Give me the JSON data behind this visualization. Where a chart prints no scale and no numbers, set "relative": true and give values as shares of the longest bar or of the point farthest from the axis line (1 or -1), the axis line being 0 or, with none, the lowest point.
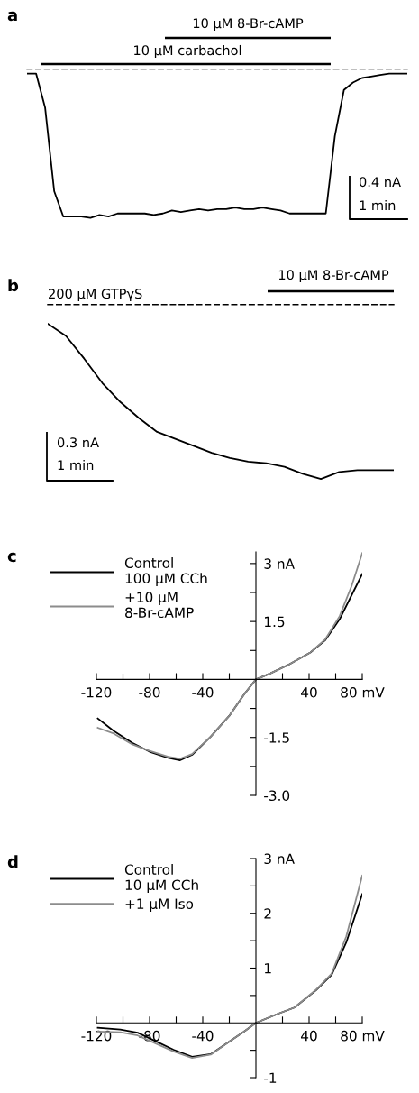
{
  "chart_data": [
    {
      "type": "line",
      "title": "a",
      "relative": true,
      "tick_labels": false,
      "grid": false,
      "legend": false,
      "line_style": "solid",
      "marker": "none",
      "categories": [
        null,
        null,
        null,
        null,
        null,
        null,
        null,
        null,
        null,
        null,
        null,
        null,
        null,
        null,
        null,
        null,
        null,
        null,
        null,
        null,
        null,
        null,
        null,
        null,
        null,
        null,
        null,
        null,
        null,
        null,
        null,
        null,
        null,
        null,
        null,
        null,
        null,
        null,
        null,
        null,
        null,
        null,
        null
      ],
      "series": [
        {
          "color": "#000000",
          "values": [
            -0.03,
            -0.03,
            -0.26,
            -0.82,
            -0.99,
            -0.99,
            -0.99,
            -1,
            -0.98,
            -0.99,
            -0.97,
            -0.97,
            -0.97,
            -0.97,
            -0.98,
            -0.97,
            -0.95,
            -0.96,
            -0.95,
            -0.94,
            -0.95,
            -0.94,
            -0.94,
            -0.93,
            -0.94,
            -0.94,
            -0.93,
            -0.94,
            -0.95,
            -0.97,
            -0.97,
            -0.97,
            -0.97,
            -0.97,
            -0.45,
            -0.14,
            -0.09,
            -0.06,
            -0.05,
            -0.04,
            -0.03,
            -0.03,
            -0.03
          ]
        }
      ],
      "annotations": [
        "10 µM 8-Br-cAMP",
        "10 µM carbachol",
        "0.4 nA",
        "1 min"
      ]
    },
    {
      "type": "line",
      "title": "b",
      "relative": true,
      "tick_labels": false,
      "grid": false,
      "legend": false,
      "line_style": "solid",
      "marker": "none",
      "categories": [
        null,
        null,
        null,
        null,
        null,
        null,
        null,
        null,
        null,
        null,
        null,
        null,
        null,
        null,
        null,
        null,
        null,
        null,
        null,
        null
      ],
      "series": [
        {
          "color": "#000000",
          "values": [
            -0.11,
            -0.18,
            -0.31,
            -0.45,
            -0.56,
            -0.65,
            -0.73,
            -0.77,
            -0.81,
            -0.85,
            -0.88,
            -0.9,
            -0.91,
            -0.93,
            -0.97,
            -1,
            -0.96,
            -0.95,
            -0.95,
            -0.95
          ]
        }
      ],
      "annotations": [
        "200 µM GTPγS",
        "10 µM 8-Br-cAMP",
        "0.3 nA",
        "1 min"
      ]
    },
    {
      "type": "line",
      "title": "c",
      "grid": false,
      "legend": "top left",
      "line_style": "solid",
      "marker": "none",
      "xlim": [
        -120,
        80
      ],
      "ylim": [
        -3.0,
        3.3
      ],
      "xticks": [
        -120,
        {
          "value": -100,
          "label": null
        },
        -80,
        {
          "value": -60,
          "label": null
        },
        -40,
        {
          "value": -20,
          "label": null
        },
        {
          "value": 20,
          "label": null
        },
        40,
        {
          "value": 60,
          "label": null
        },
        {
          "value": 80,
          "label": "80 mV"
        }
      ],
      "yticks": [
        {
          "value": 3,
          "label": "3 nA"
        },
        {
          "value": 2.25,
          "label": null
        },
        1.5,
        {
          "value": 0.75,
          "label": null
        },
        {
          "value": -0.75,
          "label": null
        },
        -1.5,
        {
          "value": -2.25,
          "label": null
        },
        {
          "value": -3,
          "label": "-3.0"
        }
      ],
      "x": [
        -119,
        -107,
        -93,
        -80,
        -66,
        -57,
        -48,
        -34,
        -20,
        -9,
        0,
        11,
        25,
        41,
        52,
        63,
        72,
        80
      ],
      "series": [
        {
          "name": "Control\n100 µM CCh",
          "color": "#000000",
          "values": [
            -1.01,
            -1.33,
            -1.64,
            -1.87,
            -2.03,
            -2.09,
            -1.95,
            -1.48,
            -0.94,
            -0.39,
            0,
            0.16,
            0.39,
            0.7,
            1.01,
            1.56,
            2.18,
            2.73
          ]
        },
        {
          "name": "+10 µM\n8-Br-cAMP",
          "color": "#8c8c8c",
          "values": [
            -1.25,
            -1.4,
            -1.68,
            -1.85,
            -2.0,
            -2.05,
            -1.93,
            -1.48,
            -0.94,
            -0.39,
            0,
            0.16,
            0.39,
            0.7,
            1.03,
            1.64,
            2.42,
            3.27
          ]
        }
      ]
    },
    {
      "type": "line",
      "title": "d",
      "grid": false,
      "legend": "top left",
      "line_style": "solid",
      "marker": "none",
      "xlim": [
        -120,
        80
      ],
      "ylim": [
        -1,
        3
      ],
      "xticks": [
        -120,
        {
          "value": -100,
          "label": null
        },
        -80,
        {
          "value": -60,
          "label": null
        },
        -40,
        {
          "value": -20,
          "label": null
        },
        {
          "value": 20,
          "label": null
        },
        40,
        {
          "value": 60,
          "label": null
        },
        {
          "value": 80,
          "label": "80 mV"
        }
      ],
      "yticks": [
        {
          "value": 3,
          "label": "3 nA"
        },
        {
          "value": 2.5,
          "label": null
        },
        2,
        {
          "value": 1.5,
          "label": null
        },
        1,
        {
          "value": 0.5,
          "label": null
        },
        {
          "value": -0.5,
          "label": null
        },
        -1
      ],
      "x": [
        -119,
        -102,
        -89,
        -75,
        -62,
        -48,
        -34,
        -20,
        -9,
        0,
        16,
        29,
        45,
        57,
        68,
        80
      ],
      "series": [
        {
          "name": "Control\n10 µM CCh",
          "color": "#000000",
          "values": [
            -0.09,
            -0.12,
            -0.18,
            -0.34,
            -0.49,
            -0.62,
            -0.57,
            -0.34,
            -0.16,
            0,
            0.16,
            0.28,
            0.59,
            0.88,
            1.47,
            2.35
          ]
        },
        {
          "name": "+1 µM Iso",
          "color": "#8c8c8c",
          "values": [
            -0.16,
            -0.17,
            -0.23,
            -0.38,
            -0.52,
            -0.64,
            -0.58,
            -0.34,
            -0.16,
            0,
            0.16,
            0.28,
            0.6,
            0.9,
            1.58,
            2.69
          ]
        }
      ]
    }
  ]
}
